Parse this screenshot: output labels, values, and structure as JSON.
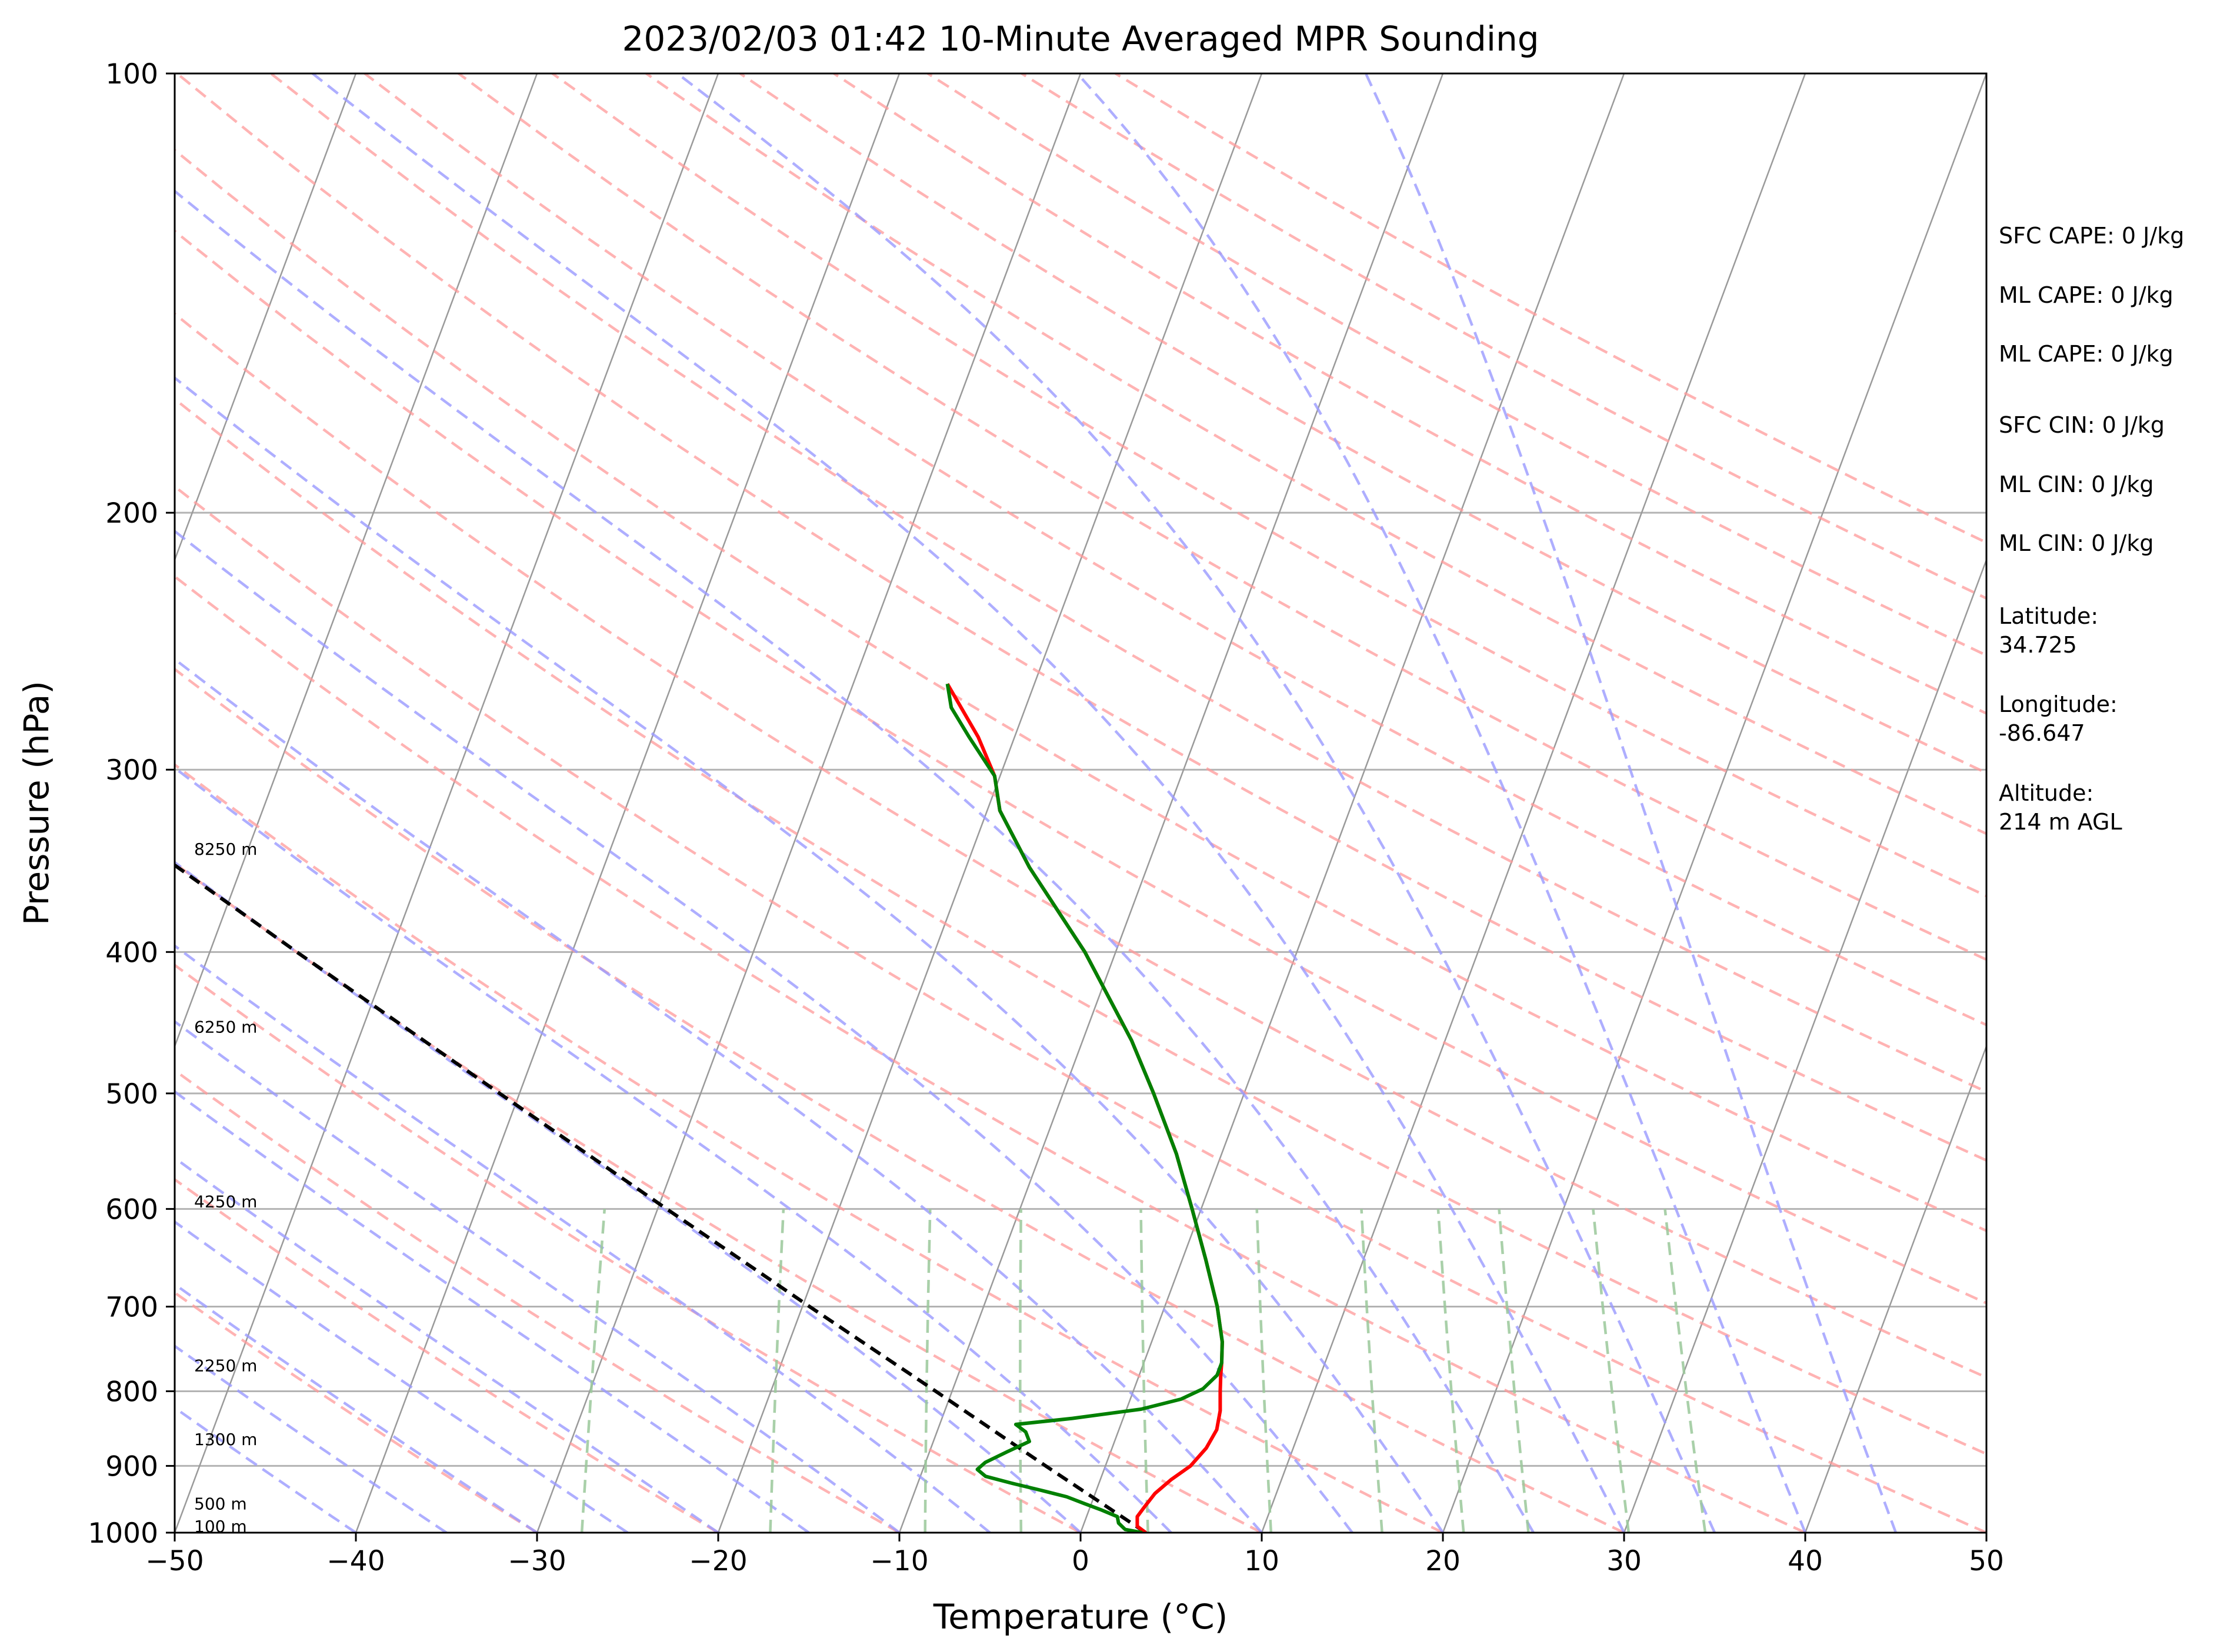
{
  "chart_data": {
    "type": "line",
    "subtype": "skew-T log-P sounding",
    "title": "2023/02/03 01:42 10-Minute Averaged MPR Sounding",
    "xlabel": "Temperature (°C)",
    "ylabel": "Pressure (hPa)",
    "xlim": [
      -50,
      50
    ],
    "ylim": [
      1000,
      100
    ],
    "y_scale": "log",
    "x_ticks": [
      "−50",
      "−40",
      "−30",
      "−20",
      "−10",
      "0",
      "10",
      "20",
      "30",
      "40",
      "50"
    ],
    "y_ticks": [
      "100",
      "200",
      "300",
      "400",
      "500",
      "600",
      "700",
      "800",
      "900",
      "1000"
    ],
    "grid": true,
    "colors": {
      "temperature": "#ff0000",
      "dewpoint": "#008000",
      "parcel": "#000000",
      "dry_adiabats": "#ff9a9a",
      "moist_adiabats": "#9a9aff",
      "mixing_ratio": "#9ac89a",
      "isotherms": "#9a9a9a"
    },
    "height_labels": [
      {
        "pressure": 340,
        "text": "8250 m"
      },
      {
        "pressure": 450,
        "text": "6250 m"
      },
      {
        "pressure": 593,
        "text": "4250 m"
      },
      {
        "pressure": 768,
        "text": "2250 m"
      },
      {
        "pressure": 863,
        "text": "1300 m"
      },
      {
        "pressure": 955,
        "text": "500 m"
      },
      {
        "pressure": 990,
        "text": "100 m"
      }
    ],
    "series": [
      {
        "key": "temperature",
        "points": [
          [
            1000,
            3.6
          ],
          [
            990,
            3.0
          ],
          [
            975,
            2.8
          ],
          [
            960,
            3.0
          ],
          [
            940,
            3.3
          ],
          [
            920,
            3.9
          ],
          [
            900,
            4.7
          ],
          [
            875,
            5.2
          ],
          [
            850,
            5.4
          ],
          [
            825,
            5.2
          ],
          [
            800,
            4.8
          ],
          [
            780,
            4.5
          ],
          [
            765,
            4.3
          ],
          [
            740,
            3.9
          ],
          [
            700,
            2.9
          ],
          [
            650,
            1.3
          ],
          [
            600,
            -0.5
          ],
          [
            550,
            -2.5
          ],
          [
            500,
            -5.0
          ],
          [
            460,
            -7.3
          ],
          [
            400,
            -11.7
          ],
          [
            350,
            -16.5
          ],
          [
            320,
            -19.3
          ],
          [
            303,
            -20.3
          ],
          [
            285,
            -22.0
          ],
          [
            262,
            -24.8
          ]
        ]
      },
      {
        "key": "dewpoint",
        "points": [
          [
            1000,
            3.4
          ],
          [
            995,
            2.4
          ],
          [
            985,
            1.9
          ],
          [
            975,
            1.7
          ],
          [
            965,
            0.7
          ],
          [
            955,
            -0.4
          ],
          [
            945,
            -1.5
          ],
          [
            935,
            -3.1
          ],
          [
            925,
            -4.8
          ],
          [
            915,
            -6.4
          ],
          [
            905,
            -7.0
          ],
          [
            895,
            -6.7
          ],
          [
            880,
            -5.7
          ],
          [
            866,
            -4.7
          ],
          [
            853,
            -5.1
          ],
          [
            843,
            -5.8
          ],
          [
            835,
            -2.8
          ],
          [
            823,
            0.8
          ],
          [
            810,
            2.8
          ],
          [
            797,
            3.8
          ],
          [
            780,
            4.3
          ],
          [
            765,
            4.3
          ],
          [
            740,
            3.9
          ],
          [
            700,
            2.9
          ],
          [
            650,
            1.3
          ],
          [
            600,
            -0.5
          ],
          [
            550,
            -2.5
          ],
          [
            500,
            -5.0
          ],
          [
            460,
            -7.3
          ],
          [
            400,
            -11.7
          ],
          [
            350,
            -16.5
          ],
          [
            320,
            -19.3
          ],
          [
            303,
            -20.3
          ],
          [
            285,
            -22.5
          ],
          [
            272,
            -24.1
          ],
          [
            262,
            -24.8
          ]
        ]
      },
      {
        "key": "parcel",
        "points": [
          [
            1000,
            3.6
          ],
          [
            900,
            -3.3
          ],
          [
            800,
            -10.9
          ],
          [
            700,
            -19.6
          ],
          [
            600,
            -29.5
          ],
          [
            500,
            -41.1
          ],
          [
            400,
            -55.2
          ],
          [
            300,
            -73.1
          ],
          [
            262,
            -81.4
          ]
        ]
      }
    ]
  },
  "info_panel": {
    "sfc_cape": "SFC CAPE: 0 J/kg",
    "ml_cape": "ML CAPE: 0 J/kg",
    "ml_cape_2": "ML CAPE: 0 J/kg",
    "sfc_cin": "SFC CIN: 0 J/kg",
    "ml_cin": "ML CIN: 0 J/kg",
    "ml_cin_2": "ML CIN: 0 J/kg",
    "latitude_label": "Latitude:",
    "latitude_value": "34.725",
    "longitude_label": "Longitude:",
    "longitude_value": "-86.647",
    "altitude_label": "Altitude:",
    "altitude_value": "214 m AGL"
  }
}
